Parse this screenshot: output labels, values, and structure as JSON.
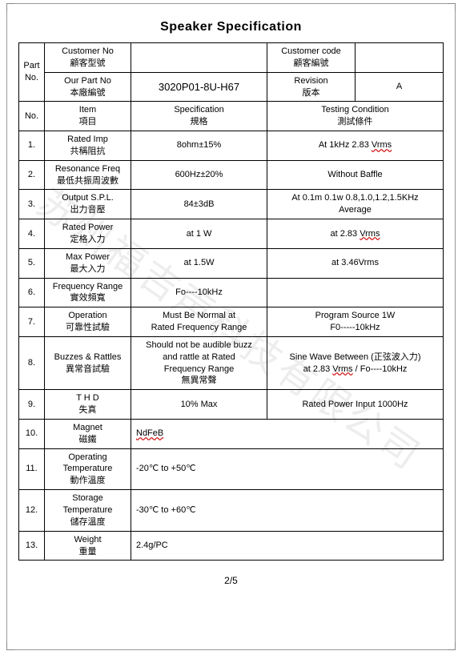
{
  "title": "Speaker    Specification",
  "watermark": "苏州福吉声科技有限公司",
  "page_num": "2/5",
  "header": {
    "part_no_label": "Part\nNo.",
    "customer_no": {
      "en": "Customer No",
      "zh": "顧客型號",
      "val": ""
    },
    "customer_code": {
      "en": "Customer code",
      "zh": "顧客編號",
      "val": ""
    },
    "our_part_no": {
      "en": "Our Part No",
      "zh": "本廠編號",
      "val": "3020P01-8U-H67"
    },
    "revision": {
      "en": "Revision",
      "zh": "版本",
      "val": "A"
    }
  },
  "columns": {
    "no": "No.",
    "item": {
      "en": "Item",
      "zh": "項目"
    },
    "spec": {
      "en": "Specification",
      "zh": "規格"
    },
    "test": {
      "en": "Testing Condition",
      "zh": "測試條件"
    }
  },
  "rows": [
    {
      "no": "1.",
      "item_en": "Rated Imp",
      "item_zh": "共稱阻抗",
      "spec": "8ohm±15%",
      "test": "At 1kHz  2.83 Vrms",
      "test_u": true
    },
    {
      "no": "2.",
      "item_en": "Resonance Freq",
      "item_zh": "最低共振周波數",
      "spec": "600Hz±20%",
      "test": "Without Baffle"
    },
    {
      "no": "3.",
      "item_en": "Output S.P.L.",
      "item_zh": "出力音壓",
      "spec": "84±3dB",
      "test": "At 0.1m 0.1w  0.8,1.0,1.2,1.5KHz\nAverage"
    },
    {
      "no": "4.",
      "item_en": "Rated Power",
      "item_zh": "定格入力",
      "spec": "at     1 W",
      "test": "at   2.83  Vrms",
      "test_u": true
    },
    {
      "no": "5.",
      "item_en": "Max Power",
      "item_zh": "最大入力",
      "spec": "at      1.5W",
      "test": "at   3.46Vrms"
    },
    {
      "no": "6.",
      "item_en": "Frequency Range",
      "item_zh": "實效頻寬",
      "spec": "Fo----10kHz",
      "test": ""
    },
    {
      "no": "7.",
      "item_en": "Operation",
      "item_zh": "可靠性試驗",
      "spec": "Must Be Normal at\nRated Frequency Range",
      "test": "Program Source 1W\nF0-----10kHz"
    },
    {
      "no": "8.",
      "item_en": "Buzzes & Rattles",
      "item_zh": "異常音試驗",
      "spec": "Should not be audible buzz\nand rattle at  Rated\nFrequency Range\n無異常聲",
      "test": "Sine  Wave  Between (正弦波入力)\nat  2.83 Vrms /  Fo----10kHz",
      "test_u": true
    },
    {
      "no": "9.",
      "item_en": "T   H   D",
      "item_zh": "失真",
      "spec": "10% Max",
      "test": "Rated Power Input 1000Hz"
    },
    {
      "no": "10.",
      "item_en": "Magnet",
      "item_zh": "磁鐵",
      "spec": "NdFeB",
      "spec_u": true,
      "span": true
    },
    {
      "no": "11.",
      "item_en": "Operating\nTemperature",
      "item_zh": "動作溫度",
      "spec": "-20℃ to +50℃",
      "span": true
    },
    {
      "no": "12.",
      "item_en": "Storage\nTemperature",
      "item_zh": "儲存溫度",
      "spec": "-30℃ to +60℃",
      "span": true
    },
    {
      "no": "13.",
      "item_en": "Weight",
      "item_zh": "重量",
      "spec": "2.4g/PC",
      "span": true
    }
  ]
}
